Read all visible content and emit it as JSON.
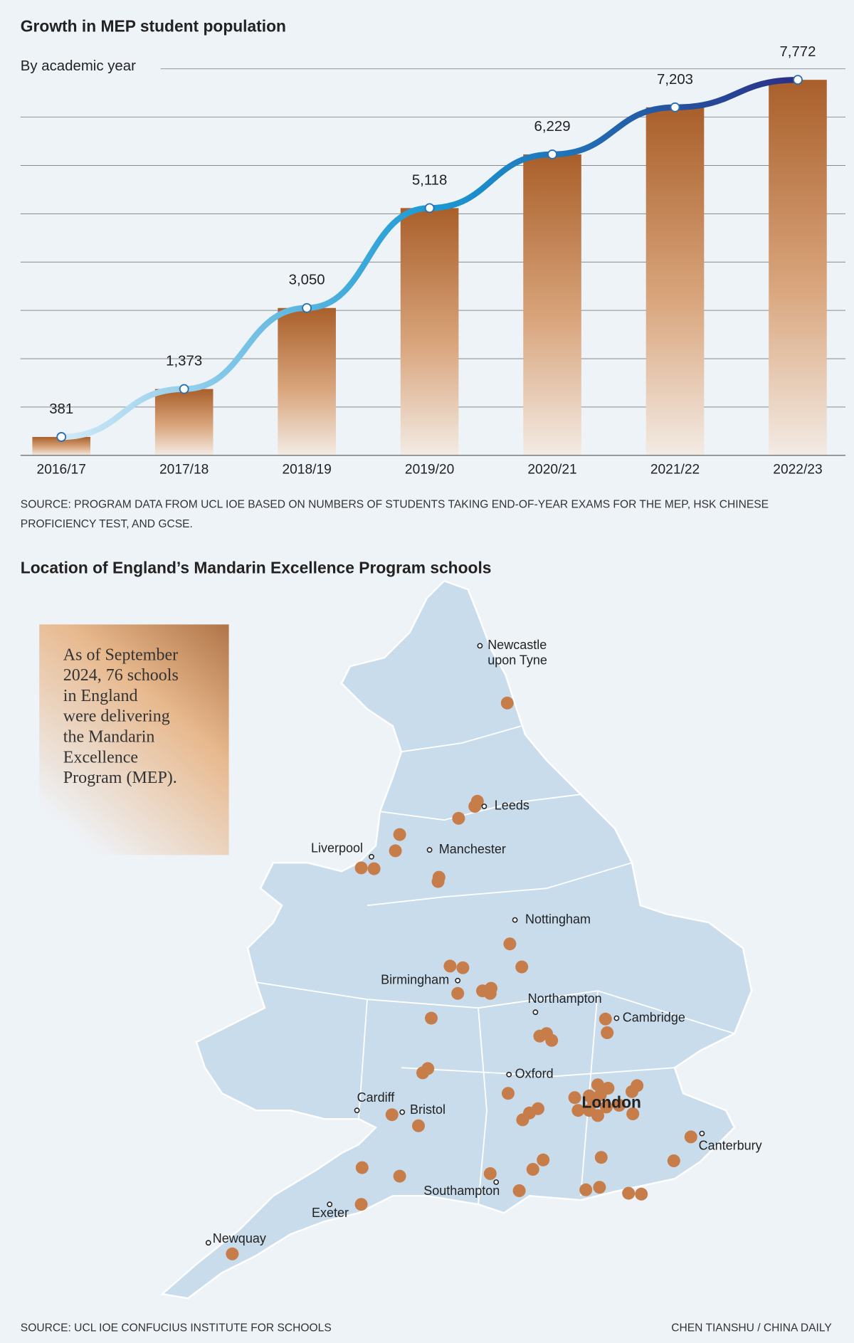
{
  "chart_data": {
    "type": "bar",
    "overlay": "line",
    "title": "Growth in MEP student population",
    "subtitle": "By academic year",
    "categories": [
      "2016/17",
      "2017/18",
      "2018/19",
      "2019/20",
      "2020/21",
      "2021/22",
      "2022/23"
    ],
    "values": [
      381,
      1373,
      3050,
      5118,
      6229,
      7203,
      7772
    ],
    "value_labels": [
      "381",
      "1,373",
      "3,050",
      "5,118",
      "6,229",
      "7,203",
      "7,772"
    ],
    "color": "#a95f2a",
    "line_colors": [
      "#d3eaf6",
      "#1a9ad4",
      "#2b2f86"
    ],
    "ylim": [
      0,
      8000
    ],
    "yticks": [
      1000,
      2000,
      3000,
      4000,
      5000,
      6000,
      7000,
      8000
    ],
    "grid": true,
    "source": "SOURCE: PROGRAM DATA FROM UCL IOE BASED ON NUMBERS OF STUDENTS TAKING END-OF-YEAR EXAMS FOR THE MEP, HSK CHINESE PROFICIENCY TEST, AND GCSE."
  },
  "map": {
    "title": "Location of England’s Mandarin Excellence Program schools",
    "note": [
      "As of September",
      "2024, 76 schools",
      "in England",
      "were delivering",
      "the Mandarin",
      "Excellence",
      "Program (MEP)."
    ],
    "cities": [
      {
        "label": [
          "Newcastle",
          "upon Tyne"
        ]
      },
      {
        "label": [
          "Leeds"
        ]
      },
      {
        "label": [
          "Manchester"
        ]
      },
      {
        "label": [
          "Liverpool"
        ]
      },
      {
        "label": [
          "Nottingham"
        ]
      },
      {
        "label": [
          "Birmingham"
        ]
      },
      {
        "label": [
          "Northampton"
        ]
      },
      {
        "label": [
          "Cambridge"
        ]
      },
      {
        "label": [
          "Oxford"
        ]
      },
      {
        "label": [
          "Cardiff"
        ]
      },
      {
        "label": [
          "Bristol"
        ]
      },
      {
        "label": [
          "London"
        ]
      },
      {
        "label": [
          "Canterbury"
        ]
      },
      {
        "label": [
          "Southampton"
        ]
      },
      {
        "label": [
          "Exeter"
        ]
      },
      {
        "label": [
          "Newquay"
        ]
      }
    ],
    "source": "SOURCE: UCL IOE CONFUCIUS INSTITUTE FOR SCHOOLS",
    "credit": "CHEN TIANSHU / CHINA DAILY"
  }
}
